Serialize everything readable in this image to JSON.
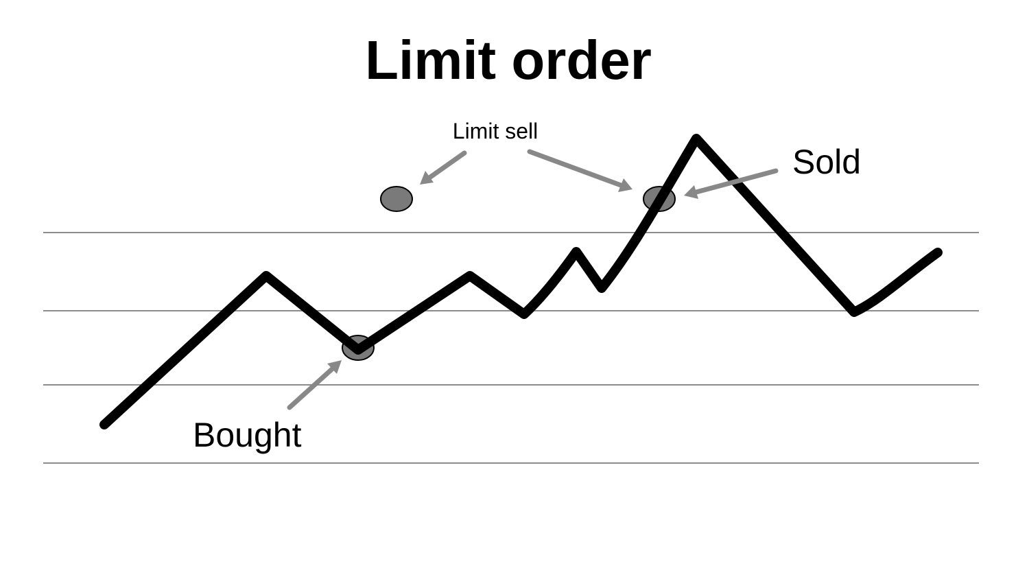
{
  "title": "Limit order",
  "labels": {
    "limit_sell": "Limit sell",
    "sold": "Sold",
    "bought": "Bought"
  },
  "colors": {
    "price_line": "#000000",
    "marker_fill": "#7a7a7a",
    "arrow": "#888888",
    "gridline": "#8c8c8c"
  },
  "markers": [
    "limit-sell-order-marker",
    "limit-sell-filled-marker",
    "buy-filled-marker"
  ]
}
